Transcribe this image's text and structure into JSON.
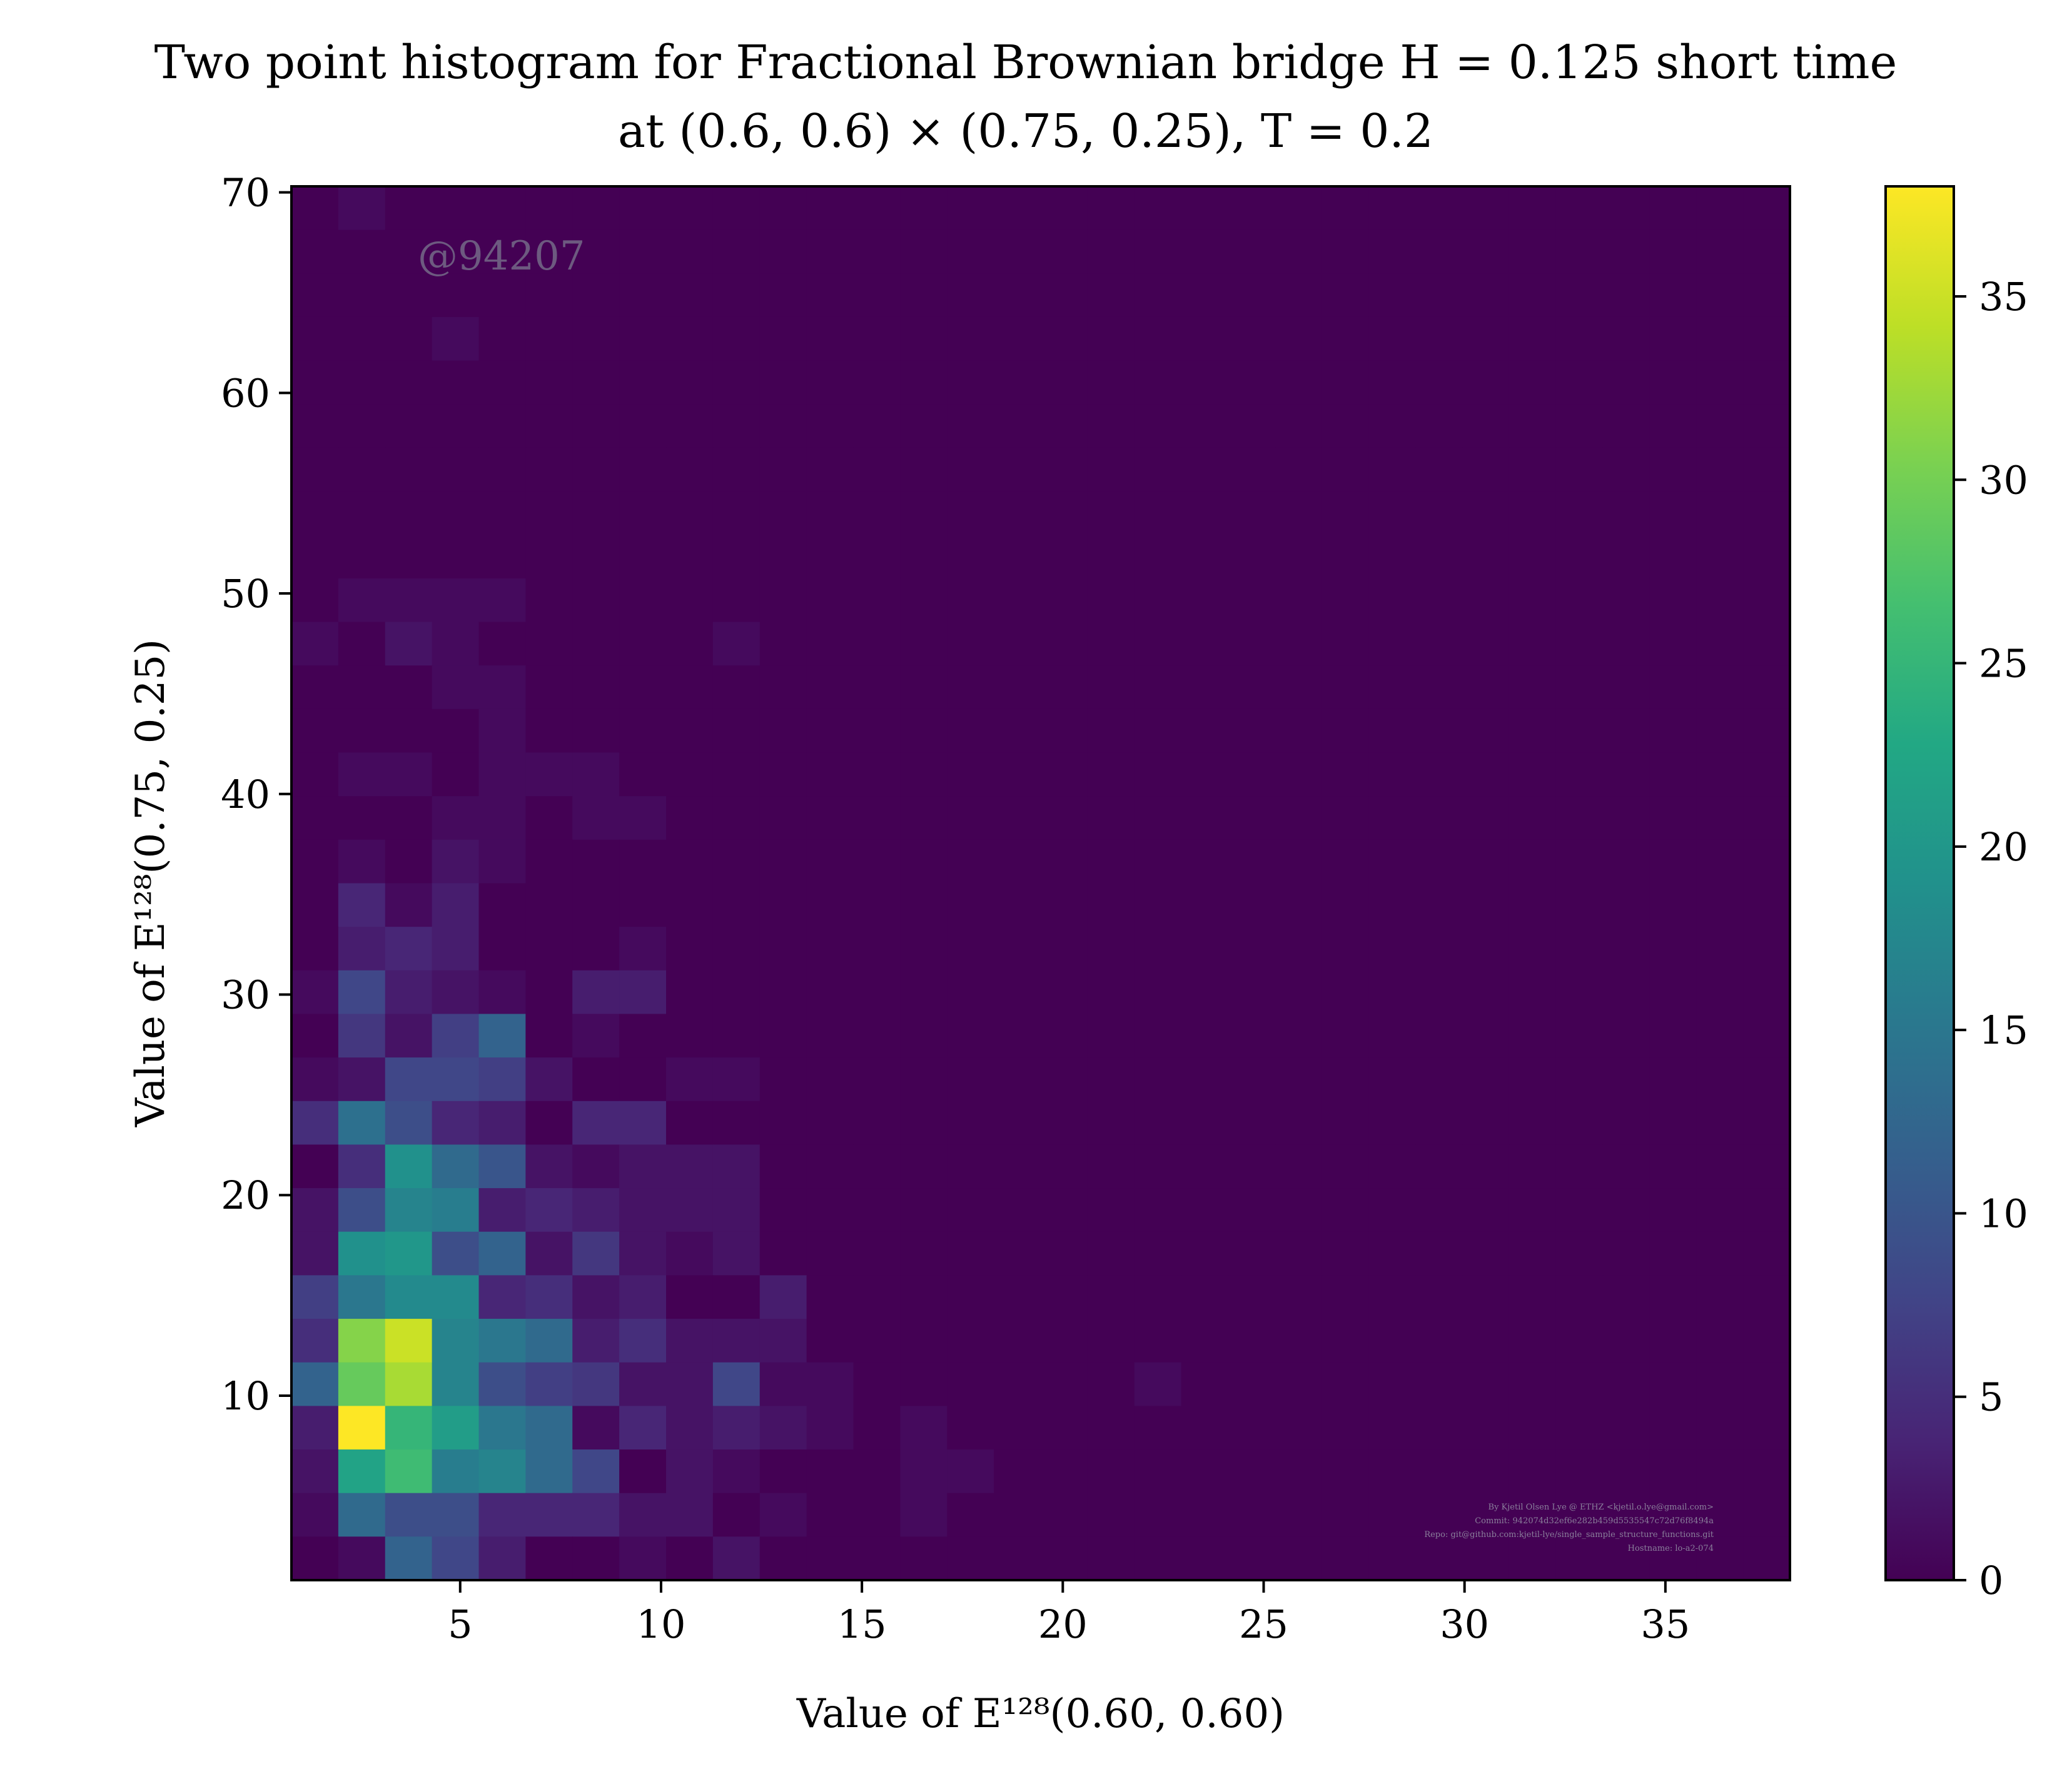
{
  "chart_data": {
    "type": "heatmap",
    "title": "Two point histogram for Fractional Brownian bridge H = 0.125 short time",
    "subtitle": "at (0.6, 0.6) × (0.75, 0.25), T = 0.2",
    "xlabel": "Value of E¹²⁸(0.60, 0.60)",
    "ylabel": "Value of E¹²⁸(0.75, 0.25)",
    "x_range": [
      0.8,
      38.1
    ],
    "y_range": [
      0.8,
      70.3
    ],
    "x_ticks": [
      "5",
      "10",
      "15",
      "20",
      "25",
      "30",
      "35"
    ],
    "y_ticks": [
      "10",
      "20",
      "30",
      "40",
      "50",
      "60",
      "70"
    ],
    "colorbar": {
      "ticks": [
        "0",
        "5",
        "10",
        "15",
        "20",
        "25",
        "30",
        "35"
      ],
      "range": [
        0,
        38
      ],
      "colormap": "viridis"
    },
    "bins_x": 32,
    "bins_y": 32,
    "counts_top_row_first": [
      [
        0,
        1,
        0,
        0,
        0,
        0,
        0,
        0,
        0,
        0,
        0,
        0,
        0,
        0,
        0,
        0,
        0,
        0,
        0,
        0,
        0,
        0,
        0,
        0,
        0,
        0,
        0,
        0,
        0,
        0,
        0,
        0
      ],
      [
        0,
        0,
        0,
        0,
        0,
        0,
        0,
        0,
        0,
        0,
        0,
        0,
        0,
        0,
        0,
        0,
        0,
        0,
        0,
        0,
        0,
        0,
        0,
        0,
        0,
        0,
        0,
        0,
        0,
        0,
        0,
        0
      ],
      [
        0,
        0,
        0,
        0,
        0,
        0,
        0,
        0,
        0,
        0,
        0,
        0,
        0,
        0,
        0,
        0,
        0,
        0,
        0,
        0,
        0,
        0,
        0,
        0,
        0,
        0,
        0,
        0,
        0,
        0,
        0,
        0
      ],
      [
        0,
        0,
        0,
        1,
        0,
        0,
        0,
        0,
        0,
        0,
        0,
        0,
        0,
        0,
        0,
        0,
        0,
        0,
        0,
        0,
        0,
        0,
        0,
        0,
        0,
        0,
        0,
        0,
        0,
        0,
        0,
        0
      ],
      [
        0,
        0,
        0,
        0,
        0,
        0,
        0,
        0,
        0,
        0,
        0,
        0,
        0,
        0,
        0,
        0,
        0,
        0,
        0,
        0,
        0,
        0,
        0,
        0,
        0,
        0,
        0,
        0,
        0,
        0,
        0,
        0
      ],
      [
        0,
        0,
        0,
        0,
        0,
        0,
        0,
        0,
        0,
        0,
        0,
        0,
        0,
        0,
        0,
        0,
        0,
        0,
        0,
        0,
        0,
        0,
        0,
        0,
        0,
        0,
        0,
        0,
        0,
        0,
        0,
        0
      ],
      [
        0,
        0,
        0,
        0,
        0,
        0,
        0,
        0,
        0,
        0,
        0,
        0,
        0,
        0,
        0,
        0,
        0,
        0,
        0,
        0,
        0,
        0,
        0,
        0,
        0,
        0,
        0,
        0,
        0,
        0,
        0,
        0
      ],
      [
        0,
        0,
        0,
        0,
        0,
        0,
        0,
        0,
        0,
        0,
        0,
        0,
        0,
        0,
        0,
        0,
        0,
        0,
        0,
        0,
        0,
        0,
        0,
        0,
        0,
        0,
        0,
        0,
        0,
        0,
        0,
        0
      ],
      [
        0,
        0,
        0,
        0,
        0,
        0,
        0,
        0,
        0,
        0,
        0,
        0,
        0,
        0,
        0,
        0,
        0,
        0,
        0,
        0,
        0,
        0,
        0,
        0,
        0,
        0,
        0,
        0,
        0,
        0,
        0,
        0
      ],
      [
        0,
        1,
        1,
        1,
        1,
        0,
        0,
        0,
        0,
        0,
        0,
        0,
        0,
        0,
        0,
        0,
        0,
        0,
        0,
        0,
        0,
        0,
        0,
        0,
        0,
        0,
        0,
        0,
        0,
        0,
        0,
        0
      ],
      [
        1,
        0,
        2,
        1,
        0,
        0,
        0,
        0,
        0,
        1,
        0,
        0,
        0,
        0,
        0,
        0,
        0,
        0,
        0,
        0,
        0,
        0,
        0,
        0,
        0,
        0,
        0,
        0,
        0,
        0,
        0,
        0
      ],
      [
        0,
        0,
        0,
        1,
        1,
        0,
        0,
        0,
        0,
        0,
        0,
        0,
        0,
        0,
        0,
        0,
        0,
        0,
        0,
        0,
        0,
        0,
        0,
        0,
        0,
        0,
        0,
        0,
        0,
        0,
        0,
        0
      ],
      [
        0,
        0,
        0,
        0,
        1,
        0,
        0,
        0,
        0,
        0,
        0,
        0,
        0,
        0,
        0,
        0,
        0,
        0,
        0,
        0,
        0,
        0,
        0,
        0,
        0,
        0,
        0,
        0,
        0,
        0,
        0,
        0
      ],
      [
        0,
        1,
        1,
        0,
        1,
        1,
        1,
        0,
        0,
        0,
        0,
        0,
        0,
        0,
        0,
        0,
        0,
        0,
        0,
        0,
        0,
        0,
        0,
        0,
        0,
        0,
        0,
        0,
        0,
        0,
        0,
        0
      ],
      [
        0,
        0,
        0,
        1,
        1,
        0,
        1,
        1,
        0,
        0,
        0,
        0,
        0,
        0,
        0,
        0,
        0,
        0,
        0,
        0,
        0,
        0,
        0,
        0,
        0,
        0,
        0,
        0,
        0,
        0,
        0,
        0
      ],
      [
        0,
        1,
        0,
        2,
        1,
        0,
        0,
        0,
        0,
        0,
        0,
        0,
        0,
        0,
        0,
        0,
        0,
        0,
        0,
        0,
        0,
        0,
        0,
        0,
        0,
        0,
        0,
        0,
        0,
        0,
        0,
        0
      ],
      [
        0,
        4,
        1,
        3,
        0,
        0,
        0,
        0,
        0,
        0,
        0,
        0,
        0,
        0,
        0,
        0,
        0,
        0,
        0,
        0,
        0,
        0,
        0,
        0,
        0,
        0,
        0,
        0,
        0,
        0,
        0,
        0
      ],
      [
        0,
        3,
        4,
        3,
        0,
        0,
        0,
        1,
        0,
        0,
        0,
        0,
        0,
        0,
        0,
        0,
        0,
        0,
        0,
        0,
        0,
        0,
        0,
        0,
        0,
        0,
        0,
        0,
        0,
        0,
        0,
        0
      ],
      [
        1,
        8,
        3,
        2,
        1,
        0,
        3,
        3,
        0,
        0,
        0,
        0,
        0,
        0,
        0,
        0,
        0,
        0,
        0,
        0,
        0,
        0,
        0,
        0,
        0,
        0,
        0,
        0,
        0,
        0,
        0,
        0
      ],
      [
        0,
        6,
        2,
        7,
        12,
        0,
        1,
        0,
        0,
        0,
        0,
        0,
        0,
        0,
        0,
        0,
        0,
        0,
        0,
        0,
        0,
        0,
        0,
        0,
        0,
        0,
        0,
        0,
        0,
        0,
        0,
        0
      ],
      [
        1,
        2,
        8,
        8,
        7,
        2,
        0,
        0,
        1,
        1,
        0,
        0,
        0,
        0,
        0,
        0,
        0,
        0,
        0,
        0,
        0,
        0,
        0,
        0,
        0,
        0,
        0,
        0,
        0,
        0,
        0,
        0
      ],
      [
        5,
        14,
        9,
        4,
        3,
        0,
        4,
        4,
        0,
        0,
        0,
        0,
        0,
        0,
        0,
        0,
        0,
        0,
        0,
        0,
        0,
        0,
        0,
        0,
        0,
        0,
        0,
        0,
        0,
        0,
        0,
        0
      ],
      [
        0,
        5,
        19,
        13,
        10,
        2,
        1,
        2,
        2,
        2,
        0,
        0,
        0,
        0,
        0,
        0,
        0,
        0,
        0,
        0,
        0,
        0,
        0,
        0,
        0,
        0,
        0,
        0,
        0,
        0,
        0,
        0
      ],
      [
        2,
        9,
        17,
        16,
        3,
        4,
        3,
        2,
        2,
        2,
        0,
        0,
        0,
        0,
        0,
        0,
        0,
        0,
        0,
        0,
        0,
        0,
        0,
        0,
        0,
        0,
        0,
        0,
        0,
        0,
        0,
        0
      ],
      [
        2,
        19,
        20,
        9,
        12,
        2,
        6,
        2,
        1,
        2,
        0,
        0,
        0,
        0,
        0,
        0,
        0,
        0,
        0,
        0,
        0,
        0,
        0,
        0,
        0,
        0,
        0,
        0,
        0,
        0,
        0,
        0
      ],
      [
        7,
        15,
        18,
        18,
        4,
        5,
        2,
        3,
        0,
        0,
        3,
        0,
        0,
        0,
        0,
        0,
        0,
        0,
        0,
        0,
        0,
        0,
        0,
        0,
        0,
        0,
        0,
        0,
        0,
        0,
        0,
        0
      ],
      [
        5,
        31,
        35,
        17,
        15,
        13,
        3,
        5,
        2,
        2,
        2,
        0,
        0,
        0,
        0,
        0,
        0,
        0,
        0,
        0,
        0,
        0,
        0,
        0,
        0,
        0,
        0,
        0,
        0,
        0,
        0,
        0
      ],
      [
        12,
        29,
        33,
        17,
        9,
        7,
        6,
        2,
        2,
        8,
        1,
        1,
        0,
        0,
        0,
        0,
        0,
        0,
        1,
        0,
        0,
        0,
        0,
        0,
        0,
        0,
        0,
        0,
        0,
        0,
        0,
        0
      ],
      [
        3,
        38,
        25,
        21,
        15,
        13,
        1,
        4,
        2,
        3,
        2,
        1,
        0,
        1,
        0,
        0,
        0,
        0,
        0,
        0,
        0,
        0,
        0,
        0,
        0,
        0,
        0,
        0,
        0,
        0,
        0,
        0
      ],
      [
        2,
        22,
        26,
        16,
        17,
        13,
        8,
        0,
        2,
        1,
        0,
        0,
        0,
        1,
        1,
        0,
        0,
        0,
        0,
        0,
        0,
        0,
        0,
        0,
        0,
        0,
        0,
        0,
        0,
        0,
        0,
        0
      ],
      [
        1,
        13,
        9,
        9,
        4,
        4,
        4,
        2,
        2,
        0,
        1,
        0,
        0,
        1,
        0,
        0,
        0,
        0,
        0,
        0,
        0,
        0,
        0,
        0,
        0,
        0,
        0,
        0,
        0,
        0,
        0,
        0
      ],
      [
        0,
        1,
        12,
        8,
        3,
        0,
        0,
        1,
        0,
        2,
        0,
        0,
        0,
        0,
        0,
        0,
        0,
        0,
        0,
        0,
        0,
        0,
        0,
        0,
        0,
        0,
        0,
        0,
        0,
        0,
        0,
        0
      ]
    ],
    "annotations": [
      "@94207",
      "By Kjetil Olsen Lye @ ETHZ <kjetil.o.lye@gmail.com>",
      "Commit: 942074d32ef6e282b459d5535547c72d76f8494a",
      "Repo: git@github.com:kjetil-lye/single_sample_structure_functions.git",
      "Hostname: lo-a2-074"
    ]
  }
}
